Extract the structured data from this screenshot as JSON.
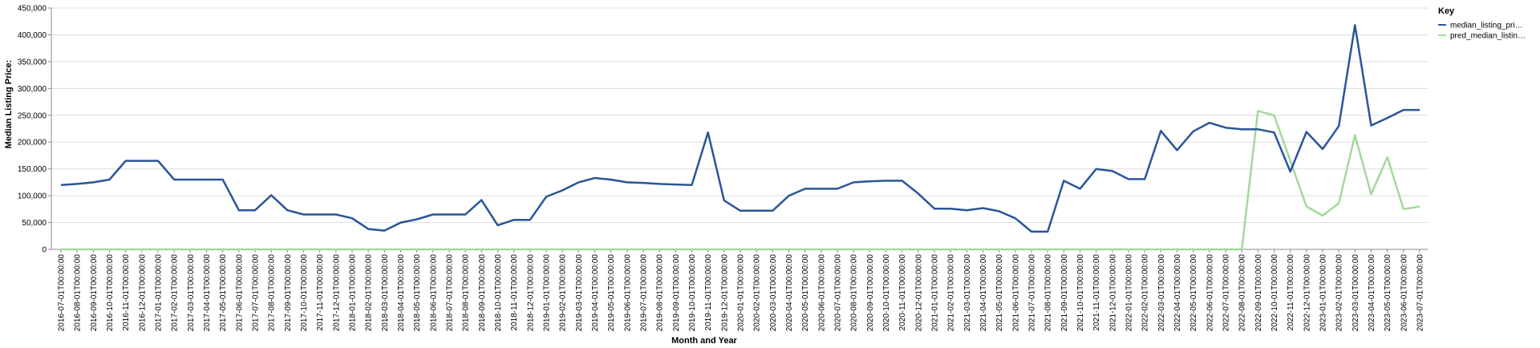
{
  "chart_data": {
    "type": "line",
    "x_label": "Month and Year",
    "y_label": "Median Listing Price:",
    "legend_title": "Key",
    "legend_position": "right",
    "grid": true,
    "ylim": [
      0,
      450000
    ],
    "yticks": [
      0,
      {
        "value": 50000,
        "label": "50,000"
      },
      {
        "value": 100000,
        "label": "100,000"
      },
      {
        "value": 150000,
        "label": "150,000"
      },
      {
        "value": 200000,
        "label": "200,000"
      },
      {
        "value": 250000,
        "label": "250,000"
      },
      {
        "value": 300000,
        "label": "300,000"
      },
      {
        "value": 350000,
        "label": "350,000"
      },
      {
        "value": 400000,
        "label": "400,000"
      },
      {
        "value": 450000,
        "label": "450,000"
      }
    ],
    "categories": [
      "2016-07-01T00:00:00",
      "2016-08-01T00:00:00",
      "2016-09-01T00:00:00",
      "2016-10-01T00:00:00",
      "2016-11-01T00:00:00",
      "2016-12-01T00:00:00",
      "2017-01-01T00:00:00",
      "2017-02-01T00:00:00",
      "2017-03-01T00:00:00",
      "2017-04-01T00:00:00",
      "2017-05-01T00:00:00",
      "2017-06-01T00:00:00",
      "2017-07-01T00:00:00",
      "2017-08-01T00:00:00",
      "2017-09-01T00:00:00",
      "2017-10-01T00:00:00",
      "2017-11-01T00:00:00",
      "2017-12-01T00:00:00",
      "2018-01-01T00:00:00",
      "2018-02-01T00:00:00",
      "2018-03-01T00:00:00",
      "2018-04-01T00:00:00",
      "2018-05-01T00:00:00",
      "2018-06-01T00:00:00",
      "2018-07-01T00:00:00",
      "2018-08-01T00:00:00",
      "2018-09-01T00:00:00",
      "2018-10-01T00:00:00",
      "2018-11-01T00:00:00",
      "2018-12-01T00:00:00",
      "2019-01-01T00:00:00",
      "2019-02-01T00:00:00",
      "2019-03-01T00:00:00",
      "2019-04-01T00:00:00",
      "2019-05-01T00:00:00",
      "2019-06-01T00:00:00",
      "2019-07-01T00:00:00",
      "2019-08-01T00:00:00",
      "2019-09-01T00:00:00",
      "2019-10-01T00:00:00",
      "2019-11-01T00:00:00",
      "2019-12-01T00:00:00",
      "2020-01-01T00:00:00",
      "2020-02-01T00:00:00",
      "2020-03-01T00:00:00",
      "2020-04-01T00:00:00",
      "2020-05-01T00:00:00",
      "2020-06-01T00:00:00",
      "2020-07-01T00:00:00",
      "2020-08-01T00:00:00",
      "2020-09-01T00:00:00",
      "2020-10-01T00:00:00",
      "2020-11-01T00:00:00",
      "2020-12-01T00:00:00",
      "2021-01-01T00:00:00",
      "2021-02-01T00:00:00",
      "2021-03-01T00:00:00",
      "2021-04-01T00:00:00",
      "2021-05-01T00:00:00",
      "2021-06-01T00:00:00",
      "2021-07-01T00:00:00",
      "2021-08-01T00:00:00",
      "2021-09-01T00:00:00",
      "2021-10-01T00:00:00",
      "2021-11-01T00:00:00",
      "2021-12-01T00:00:00",
      "2022-01-01T00:00:00",
      "2022-02-01T00:00:00",
      "2022-03-01T00:00:00",
      "2022-04-01T00:00:00",
      "2022-05-01T00:00:00",
      "2022-06-01T00:00:00",
      "2022-07-01T00:00:00",
      "2022-08-01T00:00:00",
      "2022-09-01T00:00:00",
      "2022-10-01T00:00:00",
      "2022-11-01T00:00:00",
      "2022-12-01T00:00:00",
      "2023-01-01T00:00:00",
      "2023-02-01T00:00:00",
      "2023-03-01T00:00:00",
      "2023-04-01T00:00:00",
      "2023-05-01T00:00:00",
      "2023-06-01T00:00:00",
      "2023-07-01T00:00:00"
    ],
    "series": [
      {
        "name": "median_listing_pri…",
        "color": "#2a5599",
        "values": [
          120000,
          122000,
          125000,
          130000,
          165000,
          165000,
          165000,
          130000,
          130000,
          130000,
          130000,
          73000,
          73000,
          101000,
          73000,
          65000,
          65000,
          65000,
          58000,
          38000,
          35000,
          50000,
          56000,
          65000,
          65000,
          65000,
          92000,
          45000,
          55000,
          55000,
          98000,
          110000,
          125000,
          133000,
          130000,
          125000,
          124000,
          122000,
          121000,
          120000,
          218000,
          91000,
          72000,
          72000,
          72000,
          100000,
          113000,
          113000,
          113000,
          125000,
          127000,
          128000,
          128000,
          104000,
          76000,
          76000,
          73000,
          77000,
          71000,
          58000,
          33000,
          33000,
          128000,
          113000,
          150000,
          146000,
          131000,
          131000,
          221000,
          185000,
          220000,
          236000,
          227000,
          224000,
          224000,
          218000,
          145000,
          219000,
          187000,
          230000,
          418000,
          231000,
          245000,
          260000,
          260000
        ]
      },
      {
        "name": "pred_median_listin…",
        "color": "#a3d99b",
        "values": [
          0,
          0,
          0,
          0,
          0,
          0,
          0,
          0,
          0,
          0,
          0,
          0,
          0,
          0,
          0,
          0,
          0,
          0,
          0,
          0,
          0,
          0,
          0,
          0,
          0,
          0,
          0,
          0,
          0,
          0,
          0,
          0,
          0,
          0,
          0,
          0,
          0,
          0,
          0,
          0,
          0,
          0,
          0,
          0,
          0,
          0,
          0,
          0,
          0,
          0,
          0,
          0,
          0,
          0,
          0,
          0,
          0,
          0,
          0,
          0,
          0,
          0,
          0,
          0,
          0,
          0,
          0,
          0,
          0,
          0,
          0,
          0,
          0,
          0,
          258000,
          250000,
          165000,
          80000,
          63000,
          86000,
          213000,
          103000,
          172000,
          75000,
          80000
        ]
      }
    ]
  }
}
